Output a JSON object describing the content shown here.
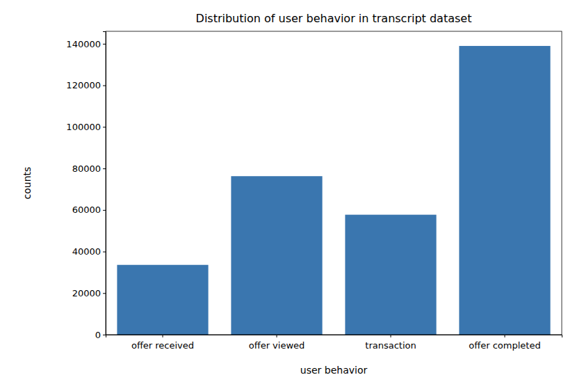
{
  "chart_data": {
    "type": "bar",
    "title": "Distribution of user behavior in transcript dataset",
    "x_label": "user behavior",
    "y_label": "counts",
    "categories": [
      "offer received",
      "offer viewed",
      "transaction",
      "offer completed"
    ],
    "values": [
      33579,
      76277,
      57725,
      138953
    ],
    "color": "#3a76af",
    "ylim": [
      0,
      146000
    ],
    "yticks": [
      0,
      20000,
      40000,
      60000,
      80000,
      100000,
      120000,
      140000
    ],
    "grid": false
  }
}
